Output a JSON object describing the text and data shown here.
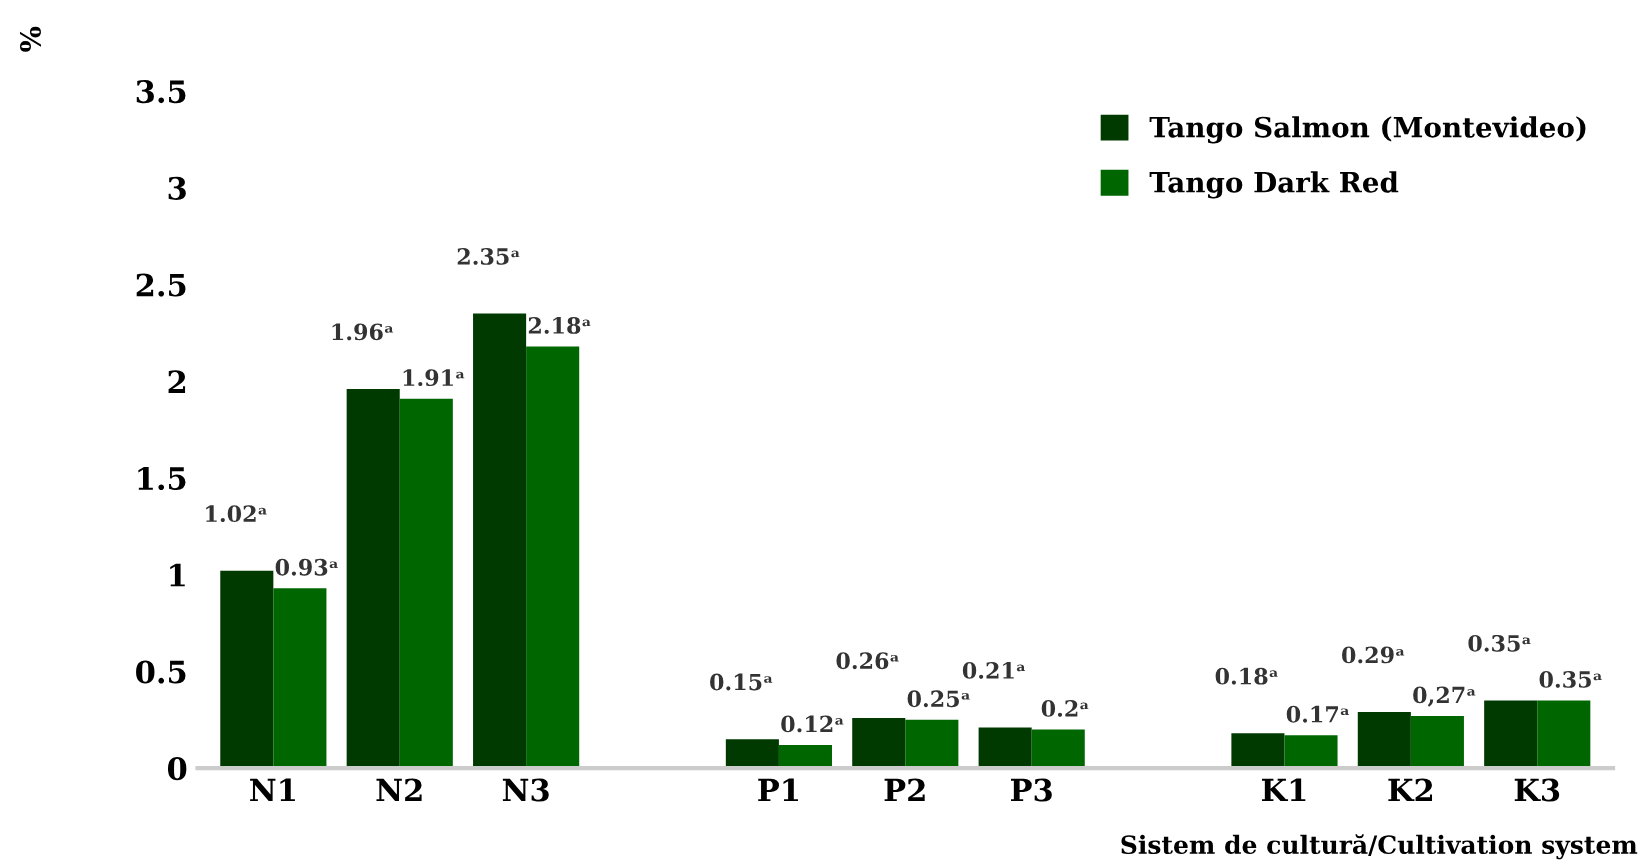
{
  "chart_data": {
    "type": "bar",
    "ylabel": "%",
    "xlabel": "Sistem de cultură/Cultivation system",
    "categories": [
      "N1",
      "N2",
      "N3",
      null,
      "P1",
      "P2",
      "P3",
      null,
      "K1",
      "K2",
      "K3"
    ],
    "series": [
      {
        "name": "Tango Salmon (Montevideo)",
        "color": "#003a00",
        "values": [
          1.02,
          1.96,
          2.35,
          null,
          0.15,
          0.26,
          0.21,
          null,
          0.18,
          0.29,
          0.35
        ],
        "value_labels": [
          "1.02ᵃ",
          "1.96ᵃ",
          "2.35ᵃ",
          null,
          "0.15ᵃ",
          "0.26ᵃ",
          "0.21ᵃ",
          null,
          "0.18ᵃ",
          "0.29ᵃ",
          "0.35ᵃ"
        ]
      },
      {
        "name": "Tango Dark Red",
        "color": "#006600",
        "values": [
          0.93,
          1.91,
          2.18,
          null,
          0.12,
          0.25,
          0.2,
          null,
          0.17,
          0.27,
          0.35
        ],
        "value_labels": [
          "0.93ᵃ",
          "1.91ᵃ",
          "2.18ᵃ",
          null,
          "0.12ᵃ",
          "0.25ᵃ",
          "0.2ᵃ",
          null,
          "0.17ᵃ",
          "0,27ᵃ",
          "0.35ᵃ"
        ]
      }
    ],
    "ylim": [
      0,
      3.5
    ],
    "yticks": [
      0,
      0.5,
      1,
      1.5,
      2,
      2.5,
      3,
      3.5
    ],
    "grid": false,
    "legend": "top right"
  }
}
